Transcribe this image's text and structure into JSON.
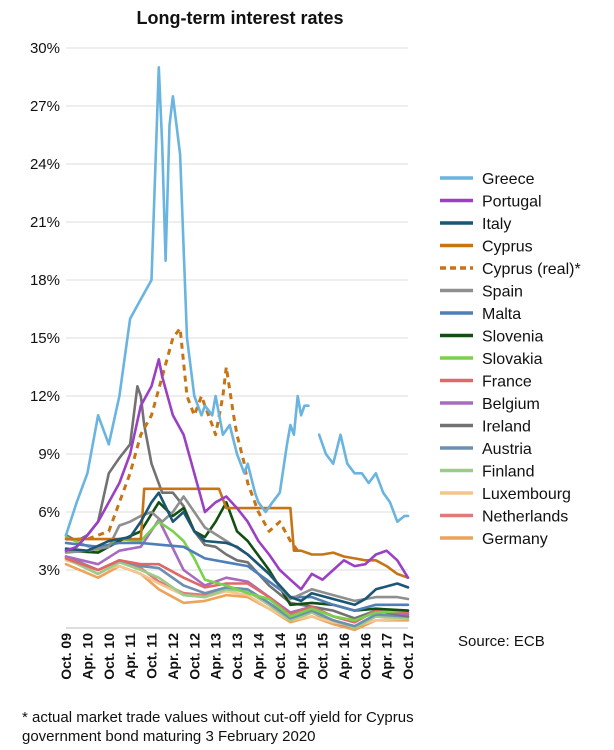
{
  "chart_data": {
    "type": "line",
    "title": "Long-term interest rates",
    "xlabel": "",
    "ylabel": "",
    "y_unit": "%",
    "ylim": [
      0,
      30
    ],
    "yticks": [
      "30%",
      "27%",
      "24%",
      "21%",
      "18%",
      "15%",
      "12%",
      "9%",
      "6%",
      "3%"
    ],
    "ytick_values": [
      30,
      27,
      24,
      21,
      18,
      15,
      12,
      9,
      6,
      3
    ],
    "xlim": [
      2009.75,
      2017.75
    ],
    "xticks": [
      "Oct. 09",
      "Apr. 10",
      "Oct. 10",
      "Apr. 11",
      "Oct. 11",
      "Apr. 12",
      "Oct. 12",
      "Apr. 13",
      "Oct. 13",
      "Apr. 14",
      "Oct. 14",
      "Apr. 15",
      "Oct. 15",
      "Apr. 16",
      "Oct. 16",
      "Apr. 17",
      "Oct. 17"
    ],
    "grid": "horizontal",
    "legend_position": "right",
    "source": "Source: ECB",
    "footnote": [
      "* actual market trade values without cut-off yield for Cyprus",
      "government bond maturing 3 February 2020"
    ],
    "series": [
      {
        "name": "Greece",
        "color": "#6ab4e0",
        "dash": false,
        "x": [
          2009.75,
          2010.0,
          2010.25,
          2010.5,
          2010.75,
          2011.0,
          2011.25,
          2011.5,
          2011.75,
          2011.92,
          2012.0,
          2012.08,
          2012.17,
          2012.25,
          2012.42,
          2012.58,
          2012.75,
          2012.92,
          2013.0,
          2013.17,
          2013.25,
          2013.42,
          2013.58,
          2013.75,
          2013.92,
          2014.0,
          2014.17,
          2014.25,
          2014.42,
          2014.58,
          2014.75,
          2014.92,
          2015.0,
          2015.08,
          2015.17,
          2015.25,
          2015.33,
          2015.42
        ],
        "y": [
          4.8,
          6.5,
          8.0,
          11.0,
          9.5,
          12.0,
          16.0,
          17.0,
          18.0,
          29.0,
          25.0,
          19.0,
          26.0,
          27.5,
          24.5,
          15.0,
          12.0,
          11.0,
          11.5,
          11.0,
          12.0,
          10.0,
          10.5,
          9.0,
          8.0,
          8.5,
          7.0,
          6.5,
          6.0,
          6.5,
          7.0,
          9.5,
          10.5,
          10.0,
          12.0,
          11.0,
          11.5,
          11.5
        ]
      },
      {
        "name": "Greece",
        "color": "#6ab4e0",
        "dash": false,
        "x": [
          2015.67,
          2015.83,
          2016.0,
          2016.17,
          2016.33,
          2016.5,
          2016.67,
          2016.83,
          2017.0,
          2017.17,
          2017.33,
          2017.5,
          2017.67,
          2017.75
        ],
        "y": [
          10.0,
          9.0,
          8.5,
          10.0,
          8.5,
          8.0,
          8.0,
          7.5,
          8.0,
          7.0,
          6.5,
          5.5,
          5.8,
          5.8
        ]
      },
      {
        "name": "Portugal",
        "color": "#9b3fc4",
        "dash": false,
        "x": [
          2009.75,
          2010.0,
          2010.25,
          2010.5,
          2010.75,
          2011.0,
          2011.25,
          2011.5,
          2011.75,
          2011.92,
          2012.0,
          2012.25,
          2012.5,
          2012.75,
          2013.0,
          2013.25,
          2013.5,
          2013.75,
          2014.0,
          2014.25,
          2014.5,
          2014.75,
          2015.0,
          2015.25,
          2015.5,
          2015.75,
          2016.0,
          2016.25,
          2016.5,
          2016.75,
          2017.0,
          2017.25,
          2017.5,
          2017.75
        ],
        "y": [
          4.0,
          4.2,
          4.8,
          5.5,
          6.5,
          7.5,
          9.0,
          11.5,
          12.5,
          13.9,
          13.0,
          11.0,
          10.0,
          8.0,
          6.0,
          6.5,
          6.8,
          6.2,
          5.5,
          4.5,
          3.8,
          3.0,
          2.5,
          2.0,
          2.8,
          2.5,
          3.0,
          3.5,
          3.2,
          3.3,
          3.8,
          4.0,
          3.5,
          2.6
        ]
      },
      {
        "name": "Italy",
        "color": "#1b5675",
        "dash": false,
        "x": [
          2009.75,
          2010.25,
          2010.75,
          2011.25,
          2011.5,
          2011.75,
          2011.92,
          2012.25,
          2012.5,
          2012.75,
          2013.0,
          2013.5,
          2013.75,
          2014.0,
          2014.5,
          2015.0,
          2015.25,
          2015.5,
          2016.0,
          2016.5,
          2016.75,
          2017.0,
          2017.5,
          2017.75
        ],
        "y": [
          4.1,
          4.0,
          4.5,
          4.7,
          5.5,
          6.5,
          7.0,
          5.5,
          6.0,
          5.0,
          4.5,
          4.4,
          4.2,
          3.8,
          2.8,
          1.6,
          1.4,
          1.8,
          1.5,
          1.2,
          1.5,
          2.0,
          2.3,
          2.1
        ]
      },
      {
        "name": "Cyprus",
        "color": "#c77415",
        "dash": false,
        "x": [
          2009.75,
          2010.0,
          2010.25,
          2010.5,
          2010.75,
          2011.0,
          2011.25,
          2011.5,
          2011.58,
          2011.75,
          2012.0,
          2012.5,
          2012.75,
          2013.0,
          2013.33,
          2013.5,
          2014.0,
          2014.5,
          2015.0,
          2015.08,
          2015.25,
          2015.5,
          2015.75,
          2016.0,
          2016.25,
          2016.5,
          2016.75,
          2017.0,
          2017.25,
          2017.5,
          2017.75
        ],
        "y": [
          4.6,
          4.6,
          4.6,
          4.6,
          4.6,
          4.6,
          4.6,
          4.6,
          7.2,
          7.2,
          7.2,
          7.2,
          7.2,
          7.2,
          7.2,
          6.2,
          6.2,
          6.2,
          6.2,
          4.0,
          4.0,
          3.8,
          3.8,
          3.9,
          3.7,
          3.6,
          3.5,
          3.5,
          3.2,
          2.8,
          2.6
        ]
      },
      {
        "name": "Cyprus (real)*",
        "color": "#c77415",
        "dash": true,
        "x": [
          2009.75,
          2010.25,
          2010.75,
          2011.0,
          2011.25,
          2011.5,
          2011.75,
          2012.0,
          2012.25,
          2012.42,
          2012.58,
          2012.75,
          2012.92,
          2013.0,
          2013.17,
          2013.25,
          2013.42,
          2013.5,
          2013.67,
          2013.75,
          2013.92,
          2014.0,
          2014.25,
          2014.5,
          2014.75,
          2015.0,
          2015.17
        ],
        "y": [
          4.6,
          4.6,
          5.0,
          6.5,
          8.0,
          10.0,
          11.0,
          13.0,
          15.0,
          15.5,
          12.0,
          11.0,
          12.0,
          11.5,
          10.5,
          10.0,
          12.0,
          13.5,
          11.0,
          10.0,
          8.5,
          7.5,
          6.0,
          5.0,
          5.5,
          4.5,
          4.0
        ]
      },
      {
        "name": "Spain",
        "color": "#8f8f8f",
        "dash": false,
        "x": [
          2009.75,
          2010.25,
          2010.75,
          2011.0,
          2011.25,
          2011.5,
          2011.75,
          2012.0,
          2012.25,
          2012.5,
          2012.75,
          2013.0,
          2013.5,
          2014.0,
          2014.5,
          2015.0,
          2015.5,
          2016.0,
          2016.5,
          2017.0,
          2017.5,
          2017.75
        ],
        "y": [
          3.9,
          4.0,
          4.2,
          5.3,
          5.5,
          5.8,
          6.0,
          5.5,
          6.0,
          6.8,
          6.0,
          5.2,
          4.5,
          3.8,
          2.8,
          1.5,
          2.0,
          1.7,
          1.4,
          1.6,
          1.6,
          1.5
        ]
      },
      {
        "name": "Malta",
        "color": "#4f7fb8",
        "dash": false,
        "x": [
          2009.75,
          2010.5,
          2011.0,
          2011.5,
          2012.0,
          2012.5,
          2013.0,
          2013.5,
          2014.0,
          2014.5,
          2015.0,
          2015.5,
          2016.0,
          2016.5,
          2017.0,
          2017.75
        ],
        "y": [
          4.4,
          4.2,
          4.4,
          4.4,
          4.3,
          4.2,
          3.6,
          3.4,
          3.2,
          2.4,
          1.6,
          1.6,
          1.2,
          0.9,
          1.2,
          1.2
        ]
      },
      {
        "name": "Slovenia",
        "color": "#124f12",
        "dash": false,
        "x": [
          2009.75,
          2010.5,
          2011.0,
          2011.5,
          2011.92,
          2012.25,
          2012.5,
          2012.75,
          2013.0,
          2013.25,
          2013.5,
          2013.75,
          2014.0,
          2014.5,
          2015.0,
          2015.5,
          2016.0,
          2016.5,
          2017.0,
          2017.75
        ],
        "y": [
          4.0,
          3.9,
          4.5,
          5.0,
          6.5,
          5.8,
          6.2,
          5.0,
          4.7,
          5.5,
          6.5,
          5.0,
          4.5,
          3.0,
          1.2,
          1.3,
          1.2,
          0.9,
          1.0,
          0.9
        ]
      },
      {
        "name": "Slovakia",
        "color": "#7bd14e",
        "dash": false,
        "x": [
          2009.75,
          2010.5,
          2011.0,
          2011.5,
          2011.92,
          2012.25,
          2012.5,
          2012.75,
          2013.0,
          2013.5,
          2014.0,
          2014.5,
          2015.0,
          2015.5,
          2016.0,
          2016.5,
          2017.0,
          2017.75
        ],
        "y": [
          4.7,
          4.0,
          4.6,
          4.5,
          5.5,
          5.0,
          4.5,
          3.6,
          2.5,
          2.2,
          1.8,
          1.5,
          0.6,
          1.0,
          0.6,
          0.4,
          0.8,
          0.9
        ]
      },
      {
        "name": "France",
        "color": "#e06868",
        "dash": false,
        "x": [
          2009.75,
          2010.5,
          2011.0,
          2011.5,
          2011.92,
          2012.5,
          2013.0,
          2013.5,
          2014.0,
          2014.5,
          2015.0,
          2015.5,
          2016.0,
          2016.5,
          2017.0,
          2017.75
        ],
        "y": [
          3.6,
          3.0,
          3.5,
          3.3,
          3.3,
          2.6,
          2.1,
          2.3,
          2.3,
          1.6,
          0.7,
          1.1,
          0.6,
          0.3,
          0.9,
          0.8
        ]
      },
      {
        "name": "Belgium",
        "color": "#a76bc0",
        "dash": false,
        "x": [
          2009.75,
          2010.5,
          2011.0,
          2011.5,
          2011.92,
          2012.5,
          2013.0,
          2013.5,
          2014.0,
          2014.5,
          2015.0,
          2015.5,
          2016.0,
          2016.5,
          2017.0,
          2017.75
        ],
        "y": [
          3.7,
          3.3,
          4.0,
          4.2,
          5.6,
          3.0,
          2.2,
          2.6,
          2.4,
          1.6,
          0.8,
          1.1,
          0.6,
          0.3,
          0.9,
          0.7
        ]
      },
      {
        "name": "Ireland",
        "color": "#727272",
        "dash": false,
        "x": [
          2009.75,
          2010.0,
          2010.25,
          2010.5,
          2010.75,
          2011.0,
          2011.25,
          2011.42,
          2011.5,
          2011.58,
          2011.75,
          2012.0,
          2012.25,
          2012.5,
          2012.75,
          2013.0,
          2013.25,
          2013.5,
          2013.75,
          2014.0,
          2014.5,
          2015.0,
          2015.5,
          2016.0,
          2016.5,
          2017.0,
          2017.75
        ],
        "y": [
          4.8,
          4.5,
          4.8,
          5.5,
          8.0,
          8.8,
          9.5,
          12.5,
          12.0,
          10.5,
          8.5,
          7.0,
          7.0,
          6.3,
          5.0,
          4.3,
          4.2,
          3.8,
          3.5,
          3.4,
          2.2,
          1.3,
          1.1,
          0.9,
          0.5,
          0.9,
          0.6
        ]
      },
      {
        "name": "Austria",
        "color": "#6d8fb0",
        "dash": false,
        "x": [
          2009.75,
          2010.5,
          2011.0,
          2011.5,
          2011.92,
          2012.5,
          2013.0,
          2013.5,
          2014.0,
          2014.5,
          2015.0,
          2015.5,
          2016.0,
          2016.5,
          2017.0,
          2017.75
        ],
        "y": [
          3.7,
          3.0,
          3.5,
          3.2,
          3.1,
          2.2,
          1.8,
          2.1,
          2.0,
          1.3,
          0.5,
          0.9,
          0.4,
          0.1,
          0.7,
          0.6
        ]
      },
      {
        "name": "Finland",
        "color": "#9ccb8a",
        "dash": false,
        "x": [
          2009.75,
          2010.5,
          2011.0,
          2011.5,
          2011.92,
          2012.5,
          2013.0,
          2013.5,
          2014.0,
          2014.5,
          2015.0,
          2015.5,
          2016.0,
          2016.5,
          2017.0,
          2017.75
        ],
        "y": [
          3.6,
          2.8,
          3.4,
          3.0,
          2.6,
          1.7,
          1.6,
          2.0,
          1.9,
          1.2,
          0.4,
          0.8,
          0.4,
          0.0,
          0.6,
          0.5
        ]
      },
      {
        "name": "Luxembourg",
        "color": "#f4c58e",
        "dash": false,
        "x": [
          2009.75,
          2010.5,
          2011.0,
          2011.5,
          2011.92,
          2012.5,
          2013.0,
          2013.5,
          2014.0,
          2014.5,
          2015.0,
          2015.5,
          2016.0,
          2016.5,
          2017.0,
          2017.75
        ],
        "y": [
          3.5,
          3.0,
          3.2,
          2.8,
          2.3,
          1.7,
          1.6,
          1.9,
          1.7,
          1.0,
          0.4,
          0.6,
          0.3,
          0.1,
          0.4,
          0.5
        ]
      },
      {
        "name": "Netherlands",
        "color": "#e07a7a",
        "dash": false,
        "x": [
          2009.75,
          2010.5,
          2011.0,
          2011.5,
          2011.92,
          2012.5,
          2013.0,
          2013.5,
          2014.0,
          2014.5,
          2015.0,
          2015.5,
          2016.0,
          2016.5,
          2017.0,
          2017.75
        ],
        "y": [
          3.6,
          2.8,
          3.4,
          3.1,
          2.4,
          1.8,
          1.7,
          2.1,
          1.9,
          1.2,
          0.4,
          0.8,
          0.3,
          0.0,
          0.6,
          0.5
        ]
      },
      {
        "name": "Germany",
        "color": "#eba45a",
        "dash": false,
        "x": [
          2009.75,
          2010.5,
          2011.0,
          2011.5,
          2011.92,
          2012.5,
          2013.0,
          2013.5,
          2014.0,
          2014.5,
          2015.0,
          2015.5,
          2016.0,
          2016.5,
          2017.0,
          2017.75
        ],
        "y": [
          3.3,
          2.6,
          3.2,
          2.8,
          2.0,
          1.3,
          1.4,
          1.7,
          1.6,
          1.0,
          0.3,
          0.6,
          0.2,
          -0.1,
          0.4,
          0.4
        ]
      }
    ],
    "legend": [
      {
        "label": "Greece",
        "color": "#6ab4e0",
        "dash": false
      },
      {
        "label": "Portugal",
        "color": "#9b3fc4",
        "dash": false
      },
      {
        "label": "Italy",
        "color": "#1b5675",
        "dash": false
      },
      {
        "label": "Cyprus",
        "color": "#c77415",
        "dash": false
      },
      {
        "label": "Cyprus (real)*",
        "color": "#c77415",
        "dash": true
      },
      {
        "label": "Spain",
        "color": "#8f8f8f",
        "dash": false
      },
      {
        "label": "Malta",
        "color": "#4f7fb8",
        "dash": false
      },
      {
        "label": "Slovenia",
        "color": "#124f12",
        "dash": false
      },
      {
        "label": "Slovakia",
        "color": "#7bd14e",
        "dash": false
      },
      {
        "label": "France",
        "color": "#e06868",
        "dash": false
      },
      {
        "label": "Belgium",
        "color": "#a76bc0",
        "dash": false
      },
      {
        "label": "Ireland",
        "color": "#727272",
        "dash": false
      },
      {
        "label": "Austria",
        "color": "#6d8fb0",
        "dash": false
      },
      {
        "label": "Finland",
        "color": "#9ccb8a",
        "dash": false
      },
      {
        "label": "Luxembourg",
        "color": "#f4c58e",
        "dash": false
      },
      {
        "label": "Netherlands",
        "color": "#e07a7a",
        "dash": false
      },
      {
        "label": "Germany",
        "color": "#eba45a",
        "dash": false
      }
    ]
  }
}
